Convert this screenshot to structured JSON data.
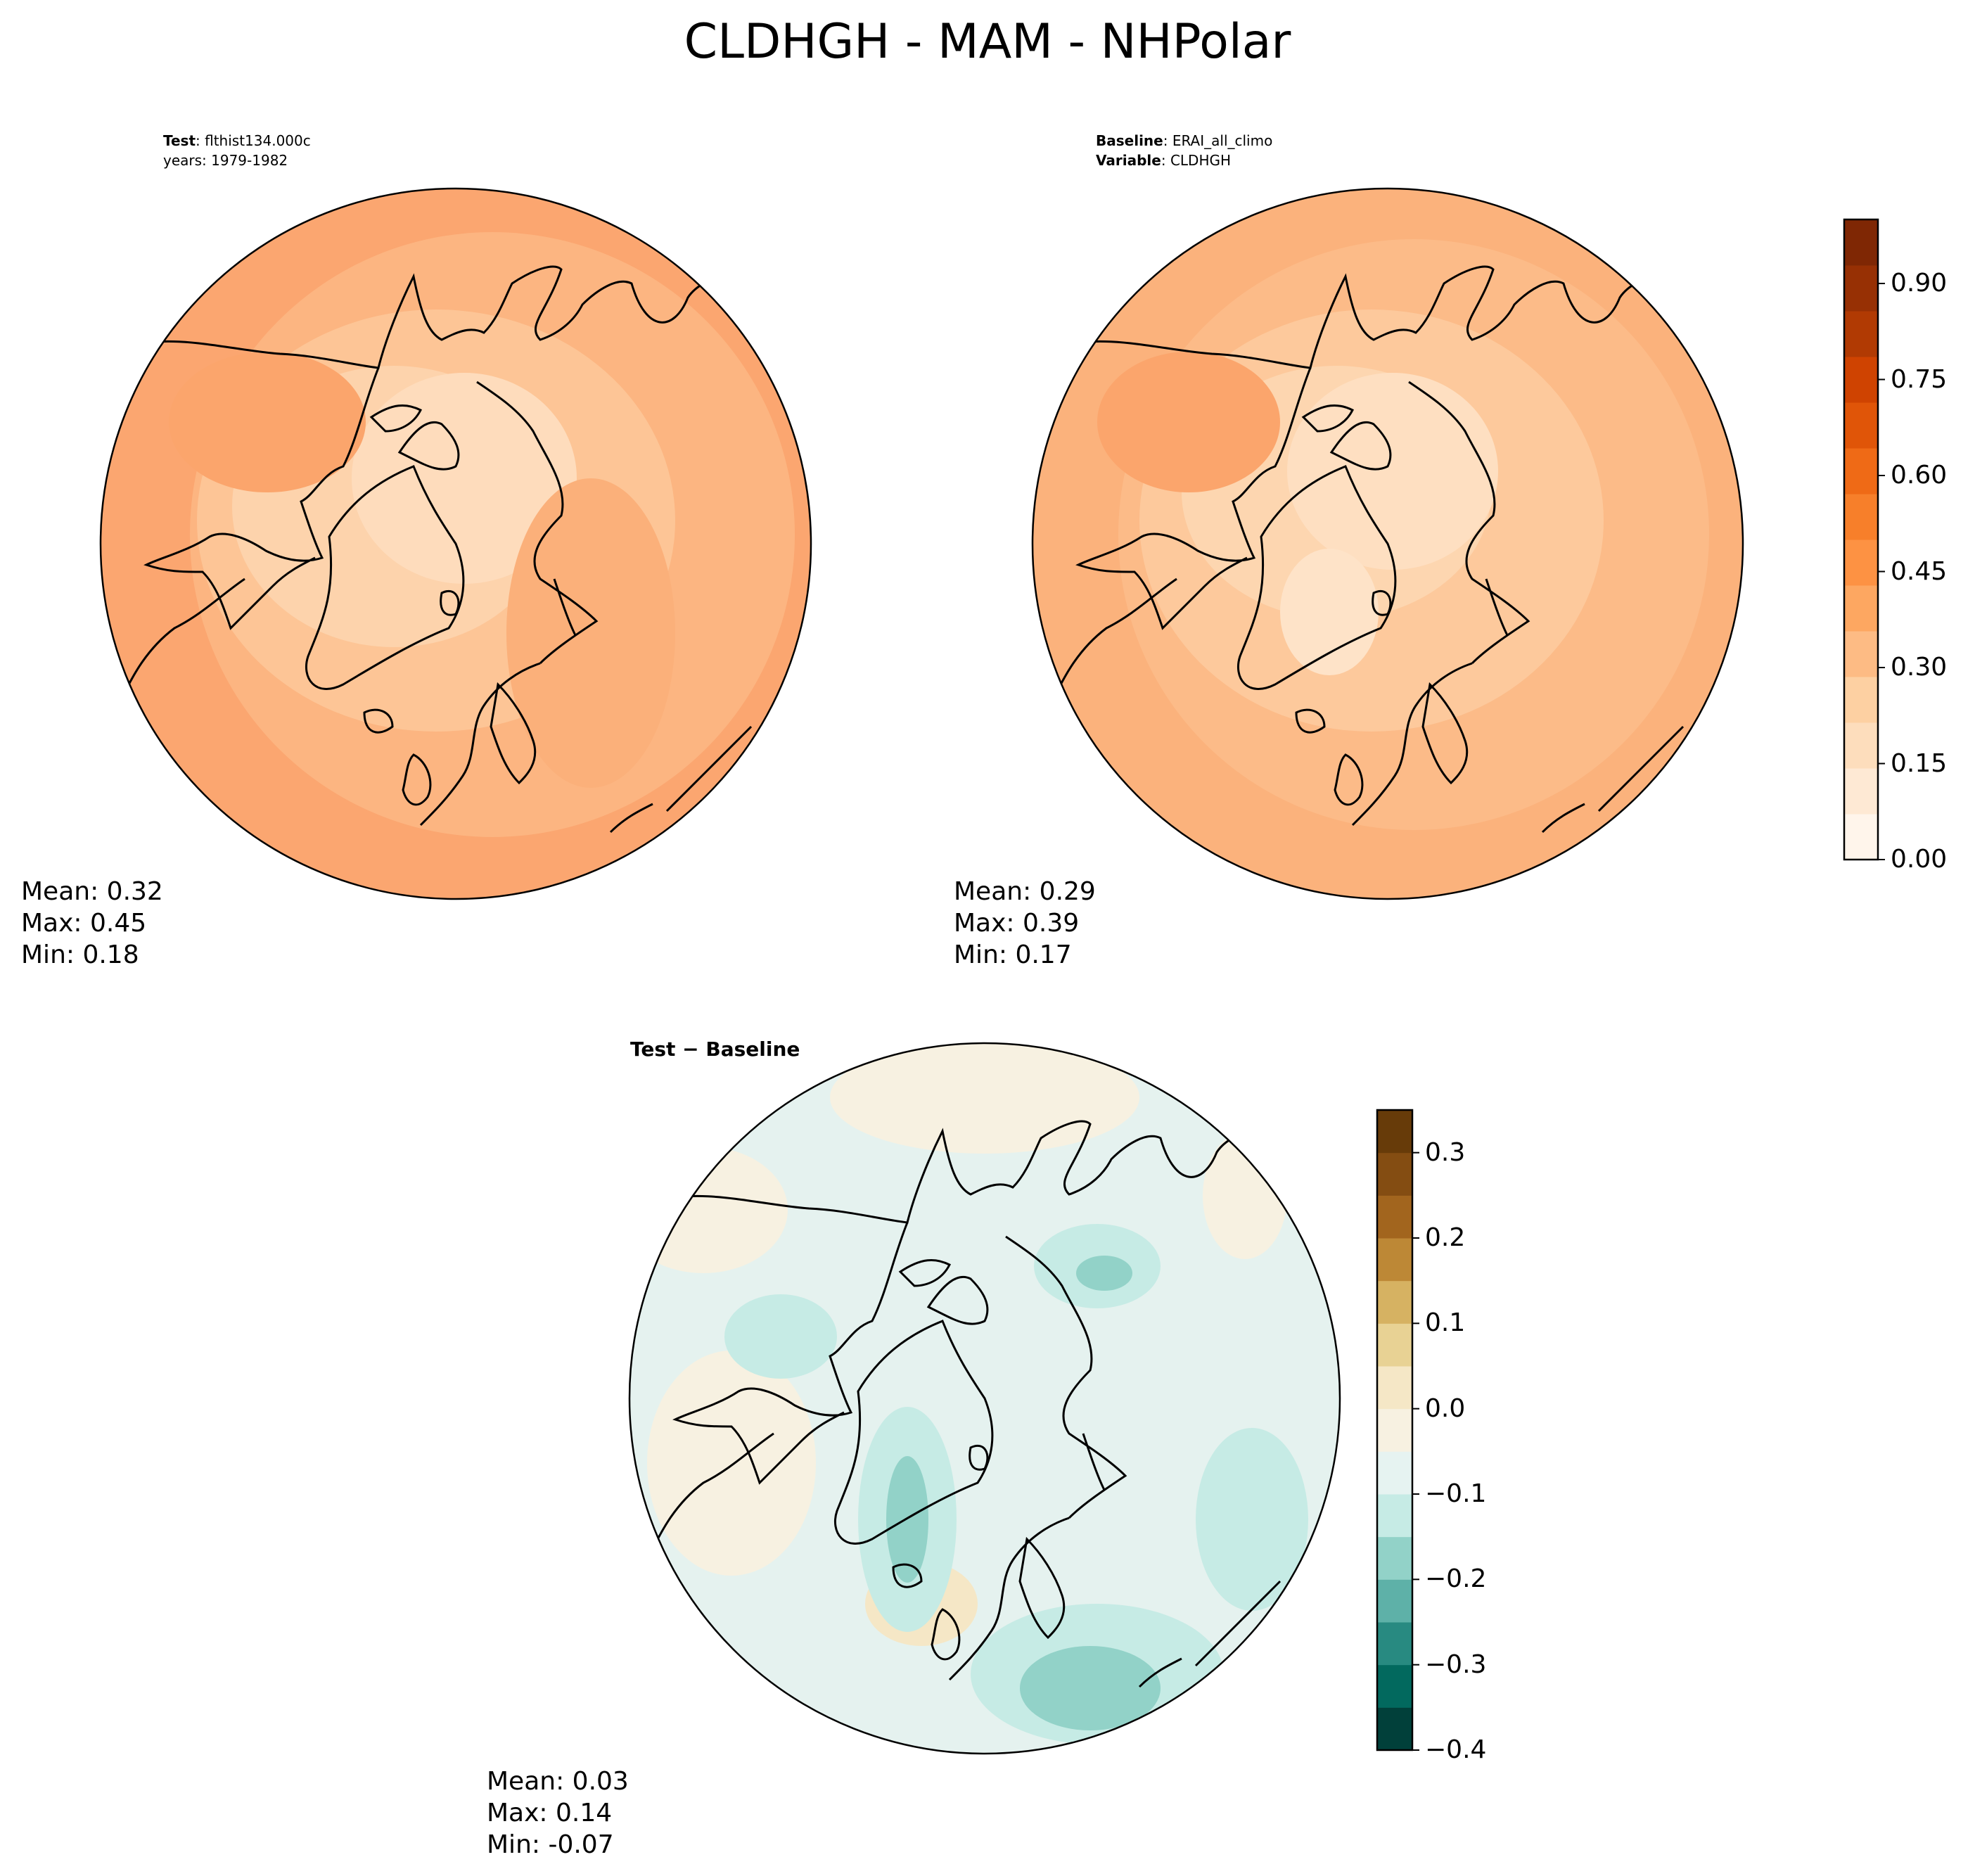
{
  "title": "CLDHGH - MAM - NHPolar",
  "panels": [
    {
      "id": "test",
      "header_line1_bold": "Test",
      "header_line1_rest": ": flthist134.000c",
      "header_line2": "years: 1979-1982",
      "stats": [
        "Mean:  0.32",
        "Max:  0.45",
        "Min:  0.18"
      ]
    },
    {
      "id": "baseline",
      "header_line1_bold": "Baseline",
      "header_line1_rest": ": ERAI_all_climo",
      "header_line2_bold": "Variable",
      "header_line2_rest": ": CLDHGH",
      "stats": [
        "Mean:  0.29",
        "Max:  0.39",
        "Min:  0.17"
      ]
    },
    {
      "id": "diff",
      "header": "Test − Baseline",
      "stats": [
        "Mean:  0.03",
        "Max:  0.14",
        "Min: -0.07"
      ]
    }
  ],
  "chart_data": [
    {
      "type": "heatmap",
      "title": "",
      "projection": "north polar stereographic",
      "mean": 0.32,
      "max": 0.45,
      "min": 0.18,
      "colormap": "Oranges",
      "levels": [
        0.0,
        0.05,
        0.1,
        0.15,
        0.2,
        0.25,
        0.3,
        0.35,
        0.4,
        0.45,
        0.5,
        0.55,
        0.6,
        0.65,
        0.7,
        0.75,
        0.8,
        0.85,
        0.9,
        0.95,
        1.0
      ]
    },
    {
      "type": "heatmap",
      "title": "",
      "projection": "north polar stereographic",
      "mean": 0.29,
      "max": 0.39,
      "min": 0.17,
      "colormap": "Oranges",
      "colorbar": {
        "ticks": [
          "0.00",
          "0.15",
          "0.30",
          "0.45",
          "0.60",
          "0.75",
          "0.90"
        ],
        "range": [
          0.0,
          1.0
        ],
        "colors": [
          "#fff5eb",
          "#fee9d4",
          "#fdddbc",
          "#fdd0a2",
          "#fdbb84",
          "#fda761",
          "#fd9243",
          "#f77f2a",
          "#ef6a16",
          "#e05508",
          "#cf4301",
          "#b13a03",
          "#973004",
          "#7f2704"
        ]
      }
    },
    {
      "type": "heatmap",
      "title": "",
      "projection": "north polar stereographic",
      "mean": 0.03,
      "max": 0.14,
      "min": -0.07,
      "colormap": "BrBG",
      "colorbar": {
        "ticks": [
          "0.3",
          "0.2",
          "0.1",
          "0.0",
          "−0.1",
          "−0.2",
          "−0.3",
          "−0.4"
        ],
        "tick_values": [
          0.3,
          0.2,
          0.1,
          0.0,
          -0.1,
          -0.2,
          -0.3,
          -0.4
        ],
        "range": [
          -0.4,
          0.35
        ],
        "colors": [
          "#01403a",
          "#02695e",
          "#288a81",
          "#5eb1a8",
          "#92d2c8",
          "#c6ebe5",
          "#e6f3f1",
          "#f7f1e1",
          "#f5e7c6",
          "#e8d294",
          "#d6b262",
          "#bd8836",
          "#a2651e",
          "#844d12",
          "#673b09"
        ]
      }
    }
  ],
  "colors": {
    "ocean_test": "#fcc398",
    "ocean_base": "#fdc99e",
    "diff_base": "#e5f2ef"
  }
}
